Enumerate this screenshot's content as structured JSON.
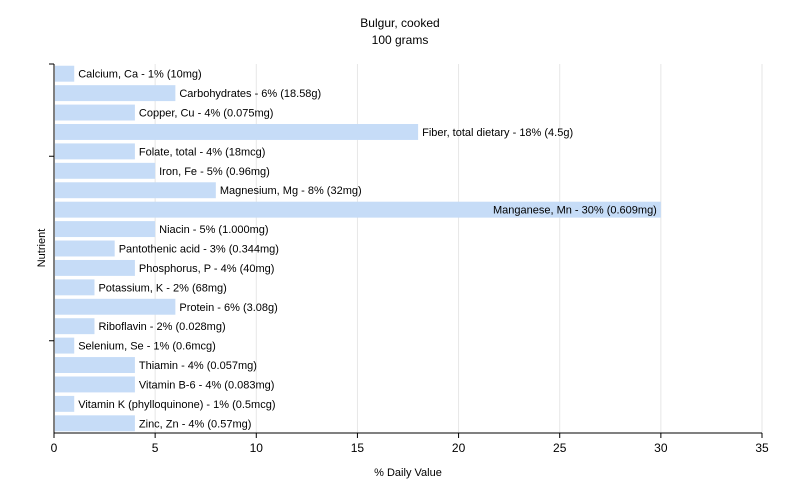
{
  "chart_data": {
    "type": "bar",
    "orientation": "horizontal",
    "title": "Bulgur, cooked",
    "subtitle": "100 grams",
    "xlabel": "% Daily Value",
    "ylabel": "Nutrient",
    "xlim": [
      0,
      35
    ],
    "xticks": [
      "0",
      "5",
      "10",
      "15",
      "20",
      "25",
      "30",
      "35"
    ],
    "grid": true,
    "bar_color": "#c6dcf7",
    "grid_color": "#e6e6e6",
    "categories": [
      "Calcium, Ca",
      "Carbohydrates",
      "Copper, Cu",
      "Fiber, total dietary",
      "Folate, total",
      "Iron, Fe",
      "Magnesium, Mg",
      "Manganese, Mn",
      "Niacin",
      "Pantothenic acid",
      "Phosphorus, P",
      "Potassium, K",
      "Protein",
      "Riboflavin",
      "Selenium, Se",
      "Thiamin",
      "Vitamin B-6",
      "Vitamin K (phylloquinone)",
      "Zinc, Zn"
    ],
    "values": [
      1,
      6,
      4,
      18,
      4,
      5,
      8,
      30,
      5,
      3,
      4,
      2,
      6,
      2,
      1,
      4,
      4,
      1,
      4
    ],
    "labels": [
      "Calcium, Ca - 1% (10mg)",
      "Carbohydrates - 6% (18.58g)",
      "Copper, Cu - 4% (0.075mg)",
      "Fiber, total dietary - 18% (4.5g)",
      "Folate, total - 4% (18mcg)",
      "Iron, Fe - 5% (0.96mg)",
      "Magnesium, Mg - 8% (32mg)",
      "Manganese, Mn - 30% (0.609mg)",
      "Niacin - 5% (1.000mg)",
      "Pantothenic acid - 3% (0.344mg)",
      "Phosphorus, P - 4% (40mg)",
      "Potassium, K - 2% (68mg)",
      "Protein - 6% (3.08g)",
      "Riboflavin - 2% (0.028mg)",
      "Selenium, Se - 1% (0.6mcg)",
      "Thiamin - 4% (0.057mg)",
      "Vitamin B-6 - 4% (0.083mg)",
      "Vitamin K (phylloquinone) - 1% (0.5mcg)",
      "Zinc, Zn - 4% (0.57mg)"
    ]
  }
}
